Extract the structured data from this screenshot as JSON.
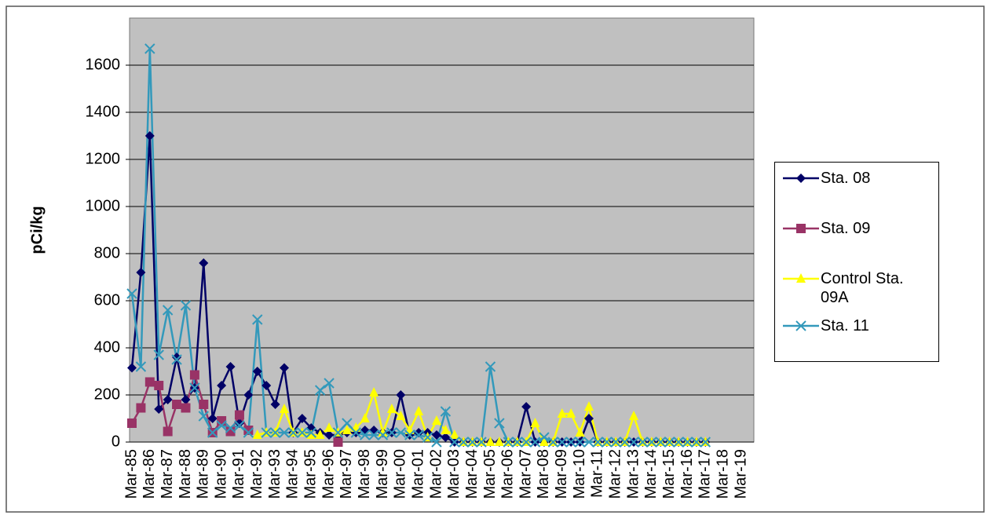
{
  "chart_data": {
    "type": "line",
    "y_label": "pCi/kg",
    "categories": [
      "Mar-85",
      null,
      "Mar-86",
      null,
      "Mar-87",
      null,
      "Mar-88",
      null,
      "Mar-89",
      null,
      "Mar-90",
      null,
      "Mar-91",
      null,
      "Mar-92",
      null,
      "Mar-93",
      null,
      "Mar-94",
      null,
      "Mar-95",
      null,
      "Mar-96",
      null,
      "Mar-97",
      null,
      "Mar-98",
      null,
      "Mar-99",
      null,
      "Mar-00",
      null,
      "Mar-01",
      null,
      "Mar-02",
      null,
      "Mar-03",
      null,
      "Mar-04",
      null,
      "Mar-05",
      null,
      "Mar-06",
      null,
      "Mar-07",
      null,
      "Mar-08",
      null,
      "Mar-09",
      null,
      "Mar-10",
      null,
      "Mar-11",
      null,
      "Mar-12",
      null,
      "Mar-13",
      null,
      "Mar-14",
      null,
      "Mar-15",
      null,
      "Mar-16",
      null,
      "Mar-17",
      null,
      "Mar-18",
      null,
      "Mar-19"
    ],
    "ylim": [
      0,
      1800
    ],
    "yticks": [
      0,
      200,
      400,
      600,
      800,
      1000,
      1200,
      1400,
      1600
    ],
    "grid": true,
    "series": [
      {
        "name": "Sta. 08",
        "color": "#000066",
        "marker": "diamond",
        "values": [
          315,
          720,
          1300,
          140,
          180,
          360,
          180,
          230,
          760,
          100,
          240,
          320,
          80,
          200,
          300,
          240,
          160,
          315,
          40,
          100,
          60,
          40,
          30,
          30,
          40,
          40,
          50,
          50,
          40,
          40,
          200,
          30,
          40,
          40,
          30,
          20,
          0,
          0,
          0,
          0,
          0,
          0,
          0,
          0,
          150,
          0,
          0,
          0,
          0,
          0,
          0,
          100,
          0,
          0,
          0,
          0,
          0,
          0,
          0,
          0,
          0,
          0,
          0,
          0,
          0,
          null,
          null,
          null,
          null
        ]
      },
      {
        "name": "Sta. 09",
        "color": "#993366",
        "marker": "square",
        "values": [
          80,
          145,
          255,
          240,
          45,
          160,
          145,
          285,
          160,
          40,
          90,
          45,
          115,
          50,
          null,
          null,
          null,
          null,
          null,
          null,
          null,
          null,
          null,
          0,
          null,
          null,
          null,
          null,
          null,
          null,
          null,
          null,
          null,
          null,
          null,
          null,
          null,
          null,
          null,
          null,
          null,
          null,
          null,
          null,
          null,
          null,
          null,
          null,
          null,
          null,
          null,
          null,
          null,
          null,
          null,
          null,
          null,
          null,
          null,
          null,
          null,
          null,
          null,
          null,
          null,
          null,
          null,
          null,
          null
        ]
      },
      {
        "name": "Control Sta. 09A",
        "color": "#ffff00",
        "marker": "triangle",
        "values": [
          null,
          null,
          null,
          null,
          null,
          null,
          null,
          null,
          null,
          null,
          null,
          null,
          null,
          null,
          30,
          40,
          40,
          140,
          40,
          40,
          30,
          30,
          60,
          40,
          50,
          60,
          100,
          210,
          40,
          140,
          110,
          50,
          130,
          20,
          90,
          50,
          30,
          0,
          0,
          0,
          0,
          0,
          0,
          0,
          0,
          80,
          0,
          0,
          120,
          120,
          40,
          150,
          0,
          0,
          0,
          0,
          110,
          0,
          0,
          0,
          0,
          0,
          0,
          0,
          0,
          null,
          null,
          null,
          null
        ]
      },
      {
        "name": "Sta. 11",
        "color": "#3399bb",
        "marker": "x",
        "values": [
          630,
          320,
          1670,
          370,
          560,
          350,
          580,
          230,
          110,
          40,
          70,
          60,
          70,
          40,
          520,
          40,
          40,
          40,
          40,
          40,
          40,
          220,
          250,
          40,
          80,
          40,
          30,
          30,
          30,
          40,
          40,
          30,
          30,
          20,
          0,
          130,
          0,
          0,
          0,
          0,
          320,
          80,
          0,
          0,
          0,
          0,
          20,
          0,
          0,
          0,
          0,
          0,
          0,
          0,
          0,
          0,
          0,
          0,
          0,
          0,
          0,
          0,
          0,
          0,
          0,
          null,
          null,
          null,
          null
        ]
      }
    ]
  }
}
